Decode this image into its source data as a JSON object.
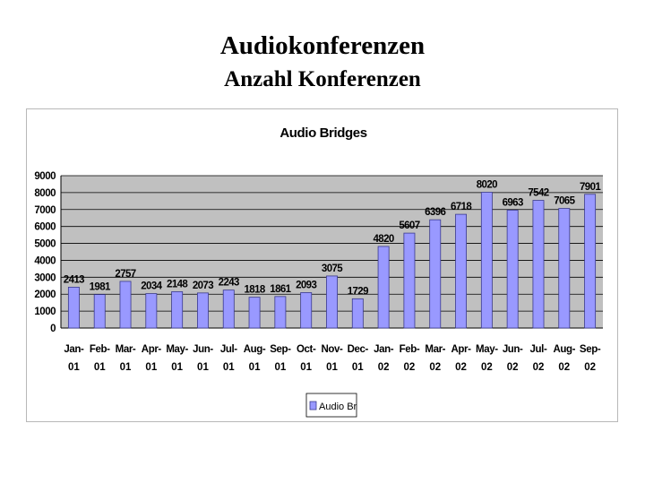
{
  "slide": {
    "title": "Audiokonferenzen",
    "subtitle": "Anzahl Konferenzen"
  },
  "chart_data": {
    "type": "bar",
    "title": "Audio Bridges",
    "xlabel": "",
    "ylabel": "",
    "ylim": [
      0,
      9000
    ],
    "yticks": [
      0,
      1000,
      2000,
      3000,
      4000,
      5000,
      6000,
      7000,
      8000,
      9000
    ],
    "grid": true,
    "legend_position": "bottom",
    "colors": {
      "bar": "#9999FF",
      "bar_edge": "#3a3a8c",
      "plot_bg": "#C0C0C0",
      "grid": "#000000"
    },
    "categories": [
      [
        "Jan-",
        "01"
      ],
      [
        "Feb-",
        "01"
      ],
      [
        "Mar-",
        "01"
      ],
      [
        "Apr-",
        "01"
      ],
      [
        "May-",
        "01"
      ],
      [
        "Jun-",
        "01"
      ],
      [
        "Jul-",
        "01"
      ],
      [
        "Aug-",
        "01"
      ],
      [
        "Sep-",
        "01"
      ],
      [
        "Oct-",
        "01"
      ],
      [
        "Nov-",
        "01"
      ],
      [
        "Dec-",
        "01"
      ],
      [
        "Jan-",
        "02"
      ],
      [
        "Feb-",
        "02"
      ],
      [
        "Mar-",
        "02"
      ],
      [
        "Apr-",
        "02"
      ],
      [
        "May-",
        "02"
      ],
      [
        "Jun-",
        "02"
      ],
      [
        "Jul-",
        "02"
      ],
      [
        "Aug-",
        "02"
      ],
      [
        "Sep-",
        "02"
      ]
    ],
    "series": [
      {
        "name": "Audio Br",
        "values": [
          2413,
          1981,
          2757,
          2034,
          2148,
          2073,
          2243,
          1818,
          1861,
          2093,
          3075,
          1729,
          4820,
          5607,
          6396,
          6718,
          8020,
          6963,
          7542,
          7065,
          7901
        ]
      }
    ]
  }
}
